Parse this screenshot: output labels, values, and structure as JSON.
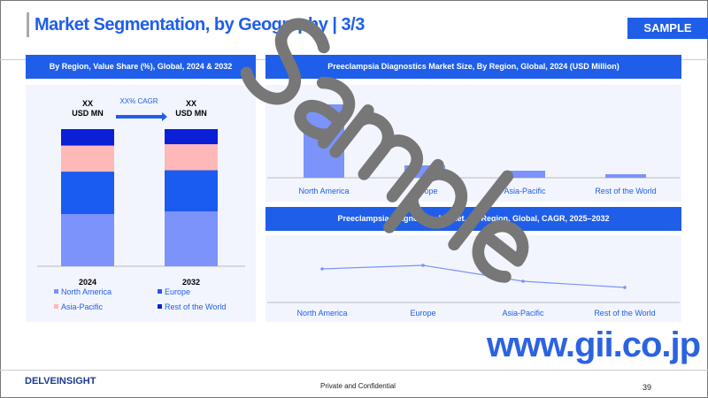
{
  "header": {
    "title": "Market Segmentation, by Geography | 3/3",
    "badge": "SAMPLE"
  },
  "left_panel": {
    "title": "By Region, Value Share (%), Global, 2024 & 2032",
    "left_value": "XX",
    "left_unit": "USD MN",
    "right_value": "XX",
    "right_unit": "USD MN",
    "cagr_label": "XX% CAGR"
  },
  "right_top": {
    "title": "Preeclampsia Diagnostics Market Size, By Region, Global, 2024 (USD Million)"
  },
  "right_bottom": {
    "title": "Preeclampsia Diagnostics Market, By Region, Global, CAGR, 2025–2032"
  },
  "chart_data": [
    {
      "type": "bar",
      "stacked": true,
      "categories": [
        "2024",
        "2032"
      ],
      "series": [
        {
          "name": "North America",
          "color": "#7b93fb",
          "values": [
            38,
            40
          ]
        },
        {
          "name": "Europe",
          "color": "#1a5cf0",
          "values": [
            31,
            30
          ]
        },
        {
          "name": "Asia-Pacific",
          "color": "#ffb8b8",
          "values": [
            19,
            19
          ]
        },
        {
          "name": "Rest of the World",
          "color": "#0a1fd6",
          "values": [
            12,
            11
          ]
        }
      ],
      "legend": "bottom"
    },
    {
      "type": "bar",
      "categories": [
        "North America",
        "Europe",
        "Asia-Pacific",
        "Rest of the World"
      ],
      "values": [
        83,
        14,
        8,
        4
      ],
      "color": "#7b93fb"
    },
    {
      "type": "line",
      "categories": [
        "North America",
        "Europe",
        "Asia-Pacific",
        "Rest of the World"
      ],
      "values": [
        38,
        42,
        24,
        17
      ],
      "color": "#7b93fb"
    }
  ],
  "watermark": "Sample",
  "website": "www.gii.co.jp",
  "footer": {
    "logo": "DELVEINSIGHT",
    "center": "Private and Confidential",
    "page": "39"
  }
}
